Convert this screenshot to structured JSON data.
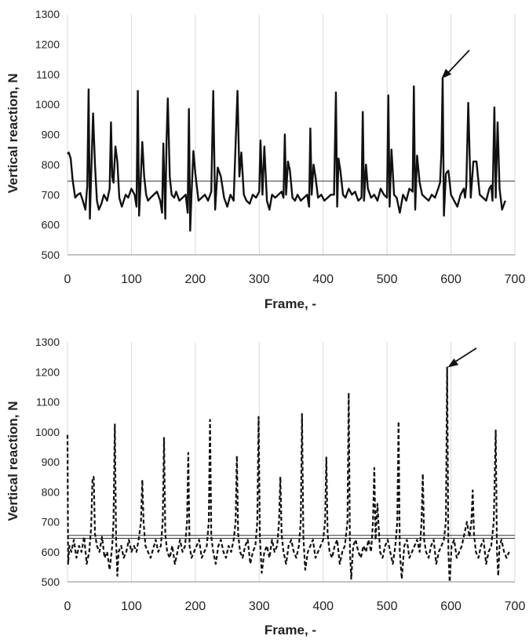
{
  "chart_data": [
    {
      "type": "line",
      "xlabel": "Frame, -",
      "ylabel": "Vertical reaction, N",
      "xlim": [
        0,
        700
      ],
      "ylim": [
        500,
        1300
      ],
      "xticks": [
        0,
        100,
        200,
        300,
        400,
        500,
        600,
        700
      ],
      "yticks": [
        500,
        600,
        700,
        800,
        900,
        1000,
        1100,
        1200,
        1300
      ],
      "grid": "vertical",
      "legend": "none",
      "annotation": {
        "type": "arrow",
        "points_to": [
          585,
          1085
        ]
      },
      "series": [
        {
          "line_style": "solid",
          "color": "#111111",
          "reference_line": 745,
          "x": [
            0,
            2,
            5,
            8,
            12,
            16,
            20,
            24,
            28,
            31,
            33,
            35,
            37,
            40,
            43,
            46,
            49,
            53,
            57,
            62,
            66,
            68,
            70,
            72,
            75,
            78,
            81,
            85,
            88,
            91,
            95,
            100,
            105,
            108,
            110,
            112,
            114,
            117,
            120,
            123,
            126,
            130,
            135,
            140,
            145,
            148,
            150,
            153,
            155,
            157,
            160,
            163,
            167,
            170,
            175,
            180,
            185,
            188,
            190,
            192,
            194,
            197,
            200,
            205,
            210,
            215,
            220,
            225,
            228,
            231,
            235,
            240,
            245,
            250,
            255,
            260,
            263,
            266,
            269,
            272,
            276,
            280,
            285,
            290,
            295,
            300,
            302,
            305,
            308,
            312,
            316,
            320,
            325,
            330,
            335,
            338,
            340,
            342,
            345,
            348,
            352,
            356,
            360,
            365,
            370,
            375,
            378,
            380,
            382,
            385,
            388,
            392,
            397,
            402,
            407,
            412,
            417,
            420,
            422,
            424,
            427,
            431,
            435,
            440,
            445,
            450,
            455,
            460,
            462,
            464,
            467,
            470,
            475,
            480,
            485,
            490,
            495,
            500,
            502,
            504,
            507,
            511,
            515,
            520,
            525,
            530,
            535,
            540,
            542,
            544,
            547,
            551,
            555,
            560,
            565,
            570,
            575,
            580,
            583,
            585,
            587,
            589,
            592,
            596,
            600,
            605,
            610,
            615,
            620,
            622,
            624,
            627,
            631,
            635,
            640,
            645,
            650,
            655,
            660,
            663,
            665,
            668,
            670,
            673,
            676,
            680,
            685
          ],
          "values": [
            835,
            840,
            820,
            750,
            690,
            700,
            705,
            680,
            650,
            730,
            1050,
            620,
            760,
            970,
            800,
            680,
            650,
            670,
            700,
            680,
            720,
            940,
            760,
            740,
            860,
            810,
            690,
            660,
            680,
            700,
            690,
            720,
            700,
            660,
            1045,
            630,
            720,
            875,
            760,
            700,
            680,
            690,
            700,
            710,
            680,
            640,
            870,
            620,
            880,
            1020,
            760,
            700,
            690,
            710,
            680,
            690,
            700,
            640,
            985,
            580,
            700,
            845,
            770,
            680,
            690,
            700,
            680,
            710,
            1045,
            650,
            790,
            760,
            690,
            660,
            700,
            680,
            870,
            1045,
            760,
            840,
            700,
            680,
            670,
            700,
            690,
            710,
            880,
            700,
            860,
            680,
            650,
            700,
            690,
            700,
            710,
            690,
            900,
            700,
            810,
            780,
            690,
            680,
            700,
            680,
            690,
            700,
            660,
            920,
            700,
            800,
            760,
            690,
            700,
            680,
            690,
            700,
            700,
            1040,
            660,
            820,
            780,
            700,
            690,
            720,
            700,
            710,
            680,
            690,
            975,
            680,
            800,
            720,
            690,
            700,
            680,
            720,
            700,
            690,
            1030,
            660,
            850,
            700,
            690,
            640,
            700,
            680,
            720,
            710,
            1060,
            650,
            830,
            740,
            700,
            690,
            680,
            700,
            690,
            720,
            740,
            840,
            1085,
            630,
            770,
            780,
            700,
            680,
            660,
            700,
            720,
            690,
            730,
            1005,
            690,
            810,
            810,
            700,
            690,
            680,
            720,
            730,
            680,
            990,
            690,
            940,
            720,
            650,
            680
          ]
        }
      ]
    },
    {
      "type": "line",
      "xlabel": "Frame, -",
      "ylabel": "Vertical reaction, N",
      "xlim": [
        0,
        700
      ],
      "ylim": [
        500,
        1300
      ],
      "xticks": [
        0,
        100,
        200,
        300,
        400,
        500,
        600,
        700
      ],
      "yticks": [
        500,
        600,
        700,
        800,
        900,
        1000,
        1100,
        1200,
        1300
      ],
      "grid": "vertical",
      "legend": "none",
      "annotation": {
        "type": "arrow",
        "points_to": [
          595,
          1215
        ]
      },
      "series": [
        {
          "line_style": "dashed",
          "color": "#111111",
          "reference_lines": [
            655,
            645
          ],
          "x": [
            0,
            1,
            3,
            6,
            10,
            14,
            18,
            22,
            26,
            30,
            34,
            37,
            39,
            41,
            43,
            46,
            50,
            54,
            58,
            62,
            66,
            70,
            72,
            74,
            76,
            78,
            80,
            84,
            88,
            92,
            96,
            100,
            104,
            108,
            112,
            115,
            117,
            119,
            122,
            126,
            130,
            134,
            138,
            142,
            146,
            149,
            151,
            153,
            156,
            160,
            164,
            168,
            172,
            176,
            180,
            184,
            187,
            189,
            191,
            194,
            198,
            202,
            206,
            210,
            214,
            218,
            221,
            223,
            225,
            228,
            232,
            236,
            240,
            244,
            248,
            252,
            256,
            260,
            263,
            265,
            267,
            270,
            274,
            278,
            282,
            286,
            290,
            294,
            297,
            299,
            301,
            304,
            308,
            312,
            316,
            320,
            324,
            328,
            331,
            333,
            335,
            338,
            342,
            346,
            350,
            354,
            358,
            362,
            365,
            367,
            369,
            372,
            376,
            380,
            384,
            388,
            392,
            396,
            400,
            403,
            405,
            407,
            410,
            414,
            418,
            422,
            426,
            430,
            434,
            438,
            440,
            442,
            444,
            447,
            451,
            455,
            459,
            463,
            467,
            471,
            475,
            478,
            480,
            482,
            485,
            489,
            493,
            497,
            501,
            505,
            509,
            513,
            516,
            518,
            520,
            523,
            527,
            531,
            535,
            539,
            543,
            547,
            551,
            554,
            556,
            558,
            561,
            565,
            569,
            573,
            577,
            581,
            585,
            589,
            592,
            594,
            596,
            598,
            601,
            605,
            609,
            613,
            617,
            621,
            625,
            629,
            632,
            634,
            636,
            639,
            643,
            647,
            651,
            655,
            659,
            663,
            667,
            670,
            672,
            674,
            676,
            679,
            683,
            687,
            691
          ],
          "values": [
            990,
            560,
            620,
            600,
            640,
            580,
            620,
            600,
            650,
            560,
            600,
            680,
            840,
            850,
            660,
            620,
            600,
            650,
            580,
            600,
            540,
            620,
            700,
            1025,
            640,
            520,
            600,
            620,
            580,
            600,
            640,
            600,
            620,
            600,
            650,
            700,
            840,
            700,
            620,
            600,
            580,
            610,
            640,
            600,
            620,
            700,
            980,
            660,
            600,
            580,
            620,
            560,
            600,
            640,
            600,
            620,
            700,
            930,
            620,
            580,
            600,
            620,
            640,
            580,
            600,
            620,
            700,
            1040,
            650,
            600,
            560,
            620,
            640,
            600,
            580,
            620,
            600,
            640,
            700,
            920,
            660,
            600,
            580,
            620,
            640,
            560,
            600,
            620,
            700,
            1050,
            650,
            530,
            600,
            620,
            580,
            640,
            600,
            620,
            700,
            850,
            660,
            600,
            560,
            620,
            640,
            600,
            580,
            620,
            700,
            1060,
            650,
            540,
            600,
            620,
            640,
            580,
            600,
            620,
            640,
            700,
            915,
            660,
            600,
            580,
            620,
            640,
            560,
            600,
            620,
            700,
            1130,
            600,
            510,
            620,
            640,
            600,
            580,
            620,
            600,
            640,
            600,
            700,
            880,
            640,
            760,
            600,
            580,
            620,
            640,
            600,
            560,
            620,
            700,
            1035,
            600,
            510,
            620,
            640,
            580,
            600,
            620,
            640,
            600,
            700,
            860,
            640,
            600,
            580,
            620,
            640,
            560,
            600,
            620,
            640,
            700,
            1215,
            600,
            500,
            620,
            640,
            580,
            600,
            620,
            660,
            700,
            650,
            700,
            805,
            660,
            600,
            580,
            620,
            640,
            560,
            600,
            620,
            700,
            1005,
            600,
            520,
            620,
            640,
            600,
            580,
            600
          ]
        }
      ]
    }
  ]
}
